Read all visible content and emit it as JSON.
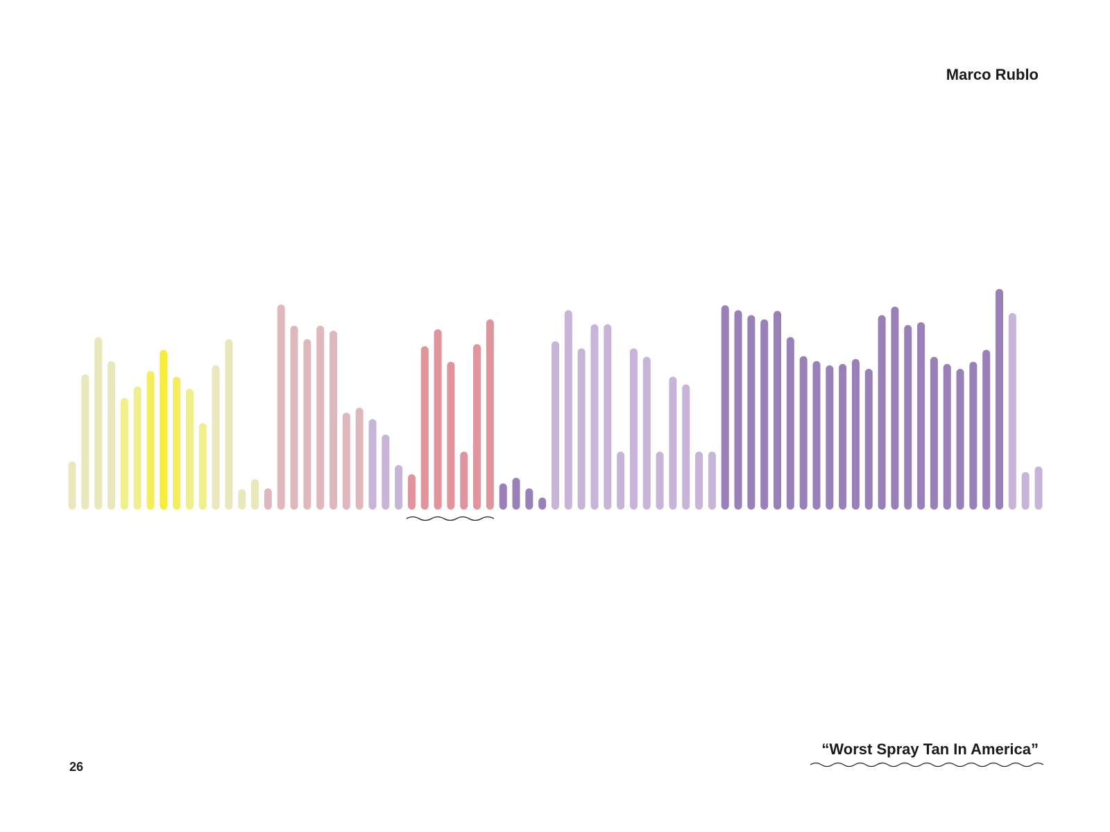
{
  "chart_data": {
    "type": "bar",
    "title": "Marco Rublo",
    "annotation": "“Worst Spray Tan In America”",
    "page_number": "26",
    "values": [
      68,
      191,
      244,
      210,
      158,
      174,
      196,
      226,
      188,
      171,
      122,
      204,
      241,
      29,
      43,
      30,
      290,
      260,
      241,
      260,
      253,
      137,
      144,
      128,
      106,
      63,
      50,
      231,
      255,
      209,
      82,
      234,
      269,
      37,
      45,
      30,
      17,
      238,
      282,
      228,
      262,
      262,
      82,
      228,
      216,
      82,
      188,
      177,
      82,
      82,
      289,
      282,
      275,
      269,
      281,
      244,
      217,
      210,
      204,
      206,
      213,
      199,
      275,
      287,
      261,
      265,
      216,
      206,
      199,
      209,
      226,
      312,
      278,
      53,
      61
    ],
    "colors": [
      "#e9e8bc",
      "#e9e8bc",
      "#e9e8bc",
      "#e9e8bc",
      "#f1ef8c",
      "#f1ef8c",
      "#f5ee5a",
      "#f7ec3c",
      "#f5ee5a",
      "#f1ef8c",
      "#f1ef8c",
      "#e9e8bc",
      "#e9e8bc",
      "#e9e8bc",
      "#e9e8bc",
      "#dfb8be",
      "#dfb8be",
      "#dfb8be",
      "#dfb8be",
      "#dfb8be",
      "#dfb8be",
      "#dfb8be",
      "#dfb8be",
      "#c8b4d8",
      "#c8b4d8",
      "#c8b4d8",
      "#e2949c",
      "#e2949c",
      "#e2949c",
      "#e2949c",
      "#e2949c",
      "#e2949c",
      "#e2949c",
      "#9a80b8",
      "#9a80b8",
      "#9a80b8",
      "#9a80b8",
      "#c8b4d8",
      "#c8b4d8",
      "#c8b4d8",
      "#c8b4d8",
      "#c8b4d8",
      "#c8b4d8",
      "#c8b4d8",
      "#c8b4d8",
      "#c8b4d8",
      "#c8b4d8",
      "#c8b4d8",
      "#c8b4d8",
      "#c8b4d8",
      "#9a80b8",
      "#9a80b8",
      "#9a80b8",
      "#9a80b8",
      "#9a80b8",
      "#9a80b8",
      "#9a80b8",
      "#9a80b8",
      "#9a80b8",
      "#9a80b8",
      "#9a80b8",
      "#9a80b8",
      "#9a80b8",
      "#9a80b8",
      "#9a80b8",
      "#9a80b8",
      "#9a80b8",
      "#9a80b8",
      "#9a80b8",
      "#9a80b8",
      "#9a80b8",
      "#9a80b8",
      "#c8b4d8",
      "#c8b4d8",
      "#c8b4d8"
    ]
  }
}
